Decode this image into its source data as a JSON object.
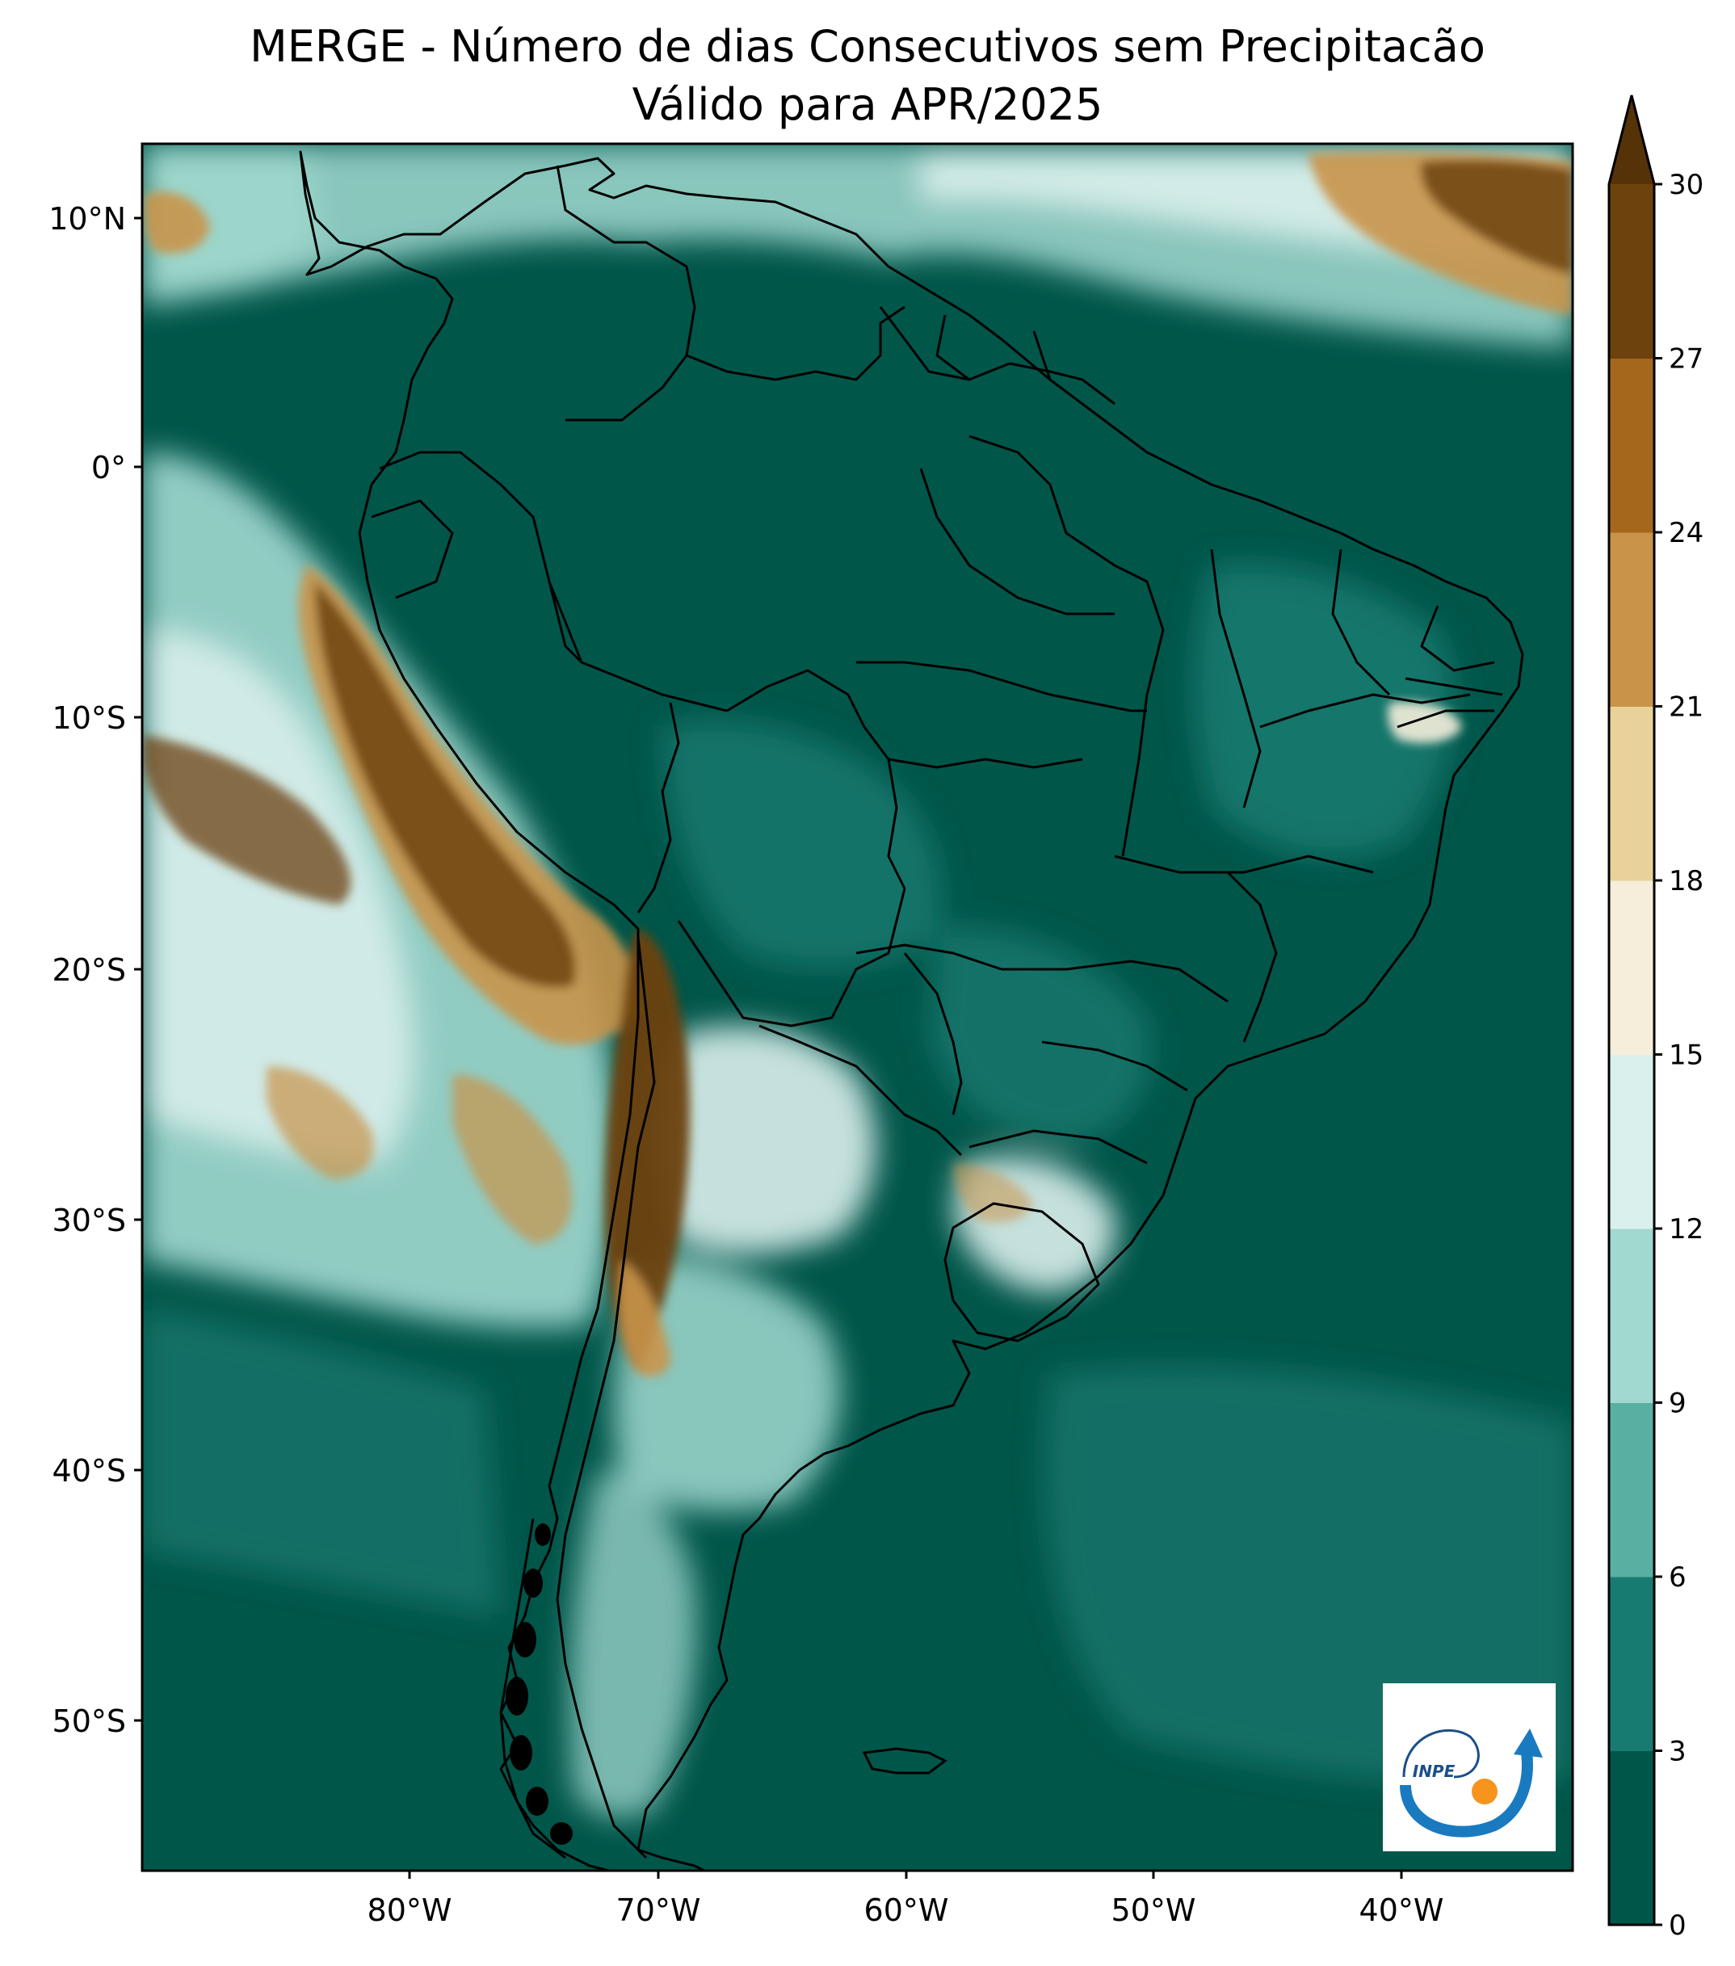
{
  "title": {
    "line1": "MERGE - Número de dias Consecutivos sem Precipitacão",
    "line2": "Válido para APR/2025"
  },
  "axes": {
    "lon_ticks": [
      "80°W",
      "70°W",
      "60°W",
      "50°W",
      "40°W"
    ],
    "lat_ticks": [
      "10°N",
      "0°",
      "10°S",
      "20°S",
      "30°S",
      "40°S",
      "50°S"
    ]
  },
  "colorbar": {
    "ticks": [
      "0",
      "3",
      "6",
      "9",
      "12",
      "15",
      "18",
      "21",
      "24",
      "27",
      "30"
    ],
    "colors": [
      "#01564a",
      "#177b71",
      "#5aafa3",
      "#a1d9d0",
      "#daf0ed",
      "#f6eedb",
      "#e9d19a",
      "#c9934a",
      "#a4671c",
      "#6e420c"
    ],
    "extend_color": "#553208"
  },
  "palette": {
    "ocean_deep": "#01564a",
    "ocean_mid": "#177b71",
    "pale_teal": "#a1d9d0",
    "near_white": "#daf0ed",
    "dry_brown": "#6e420c",
    "dry_tan": "#c9934a"
  },
  "logo": {
    "text": "INPE",
    "arrow_color": "#1a7ac0",
    "dot_color": "#f7941d"
  }
}
